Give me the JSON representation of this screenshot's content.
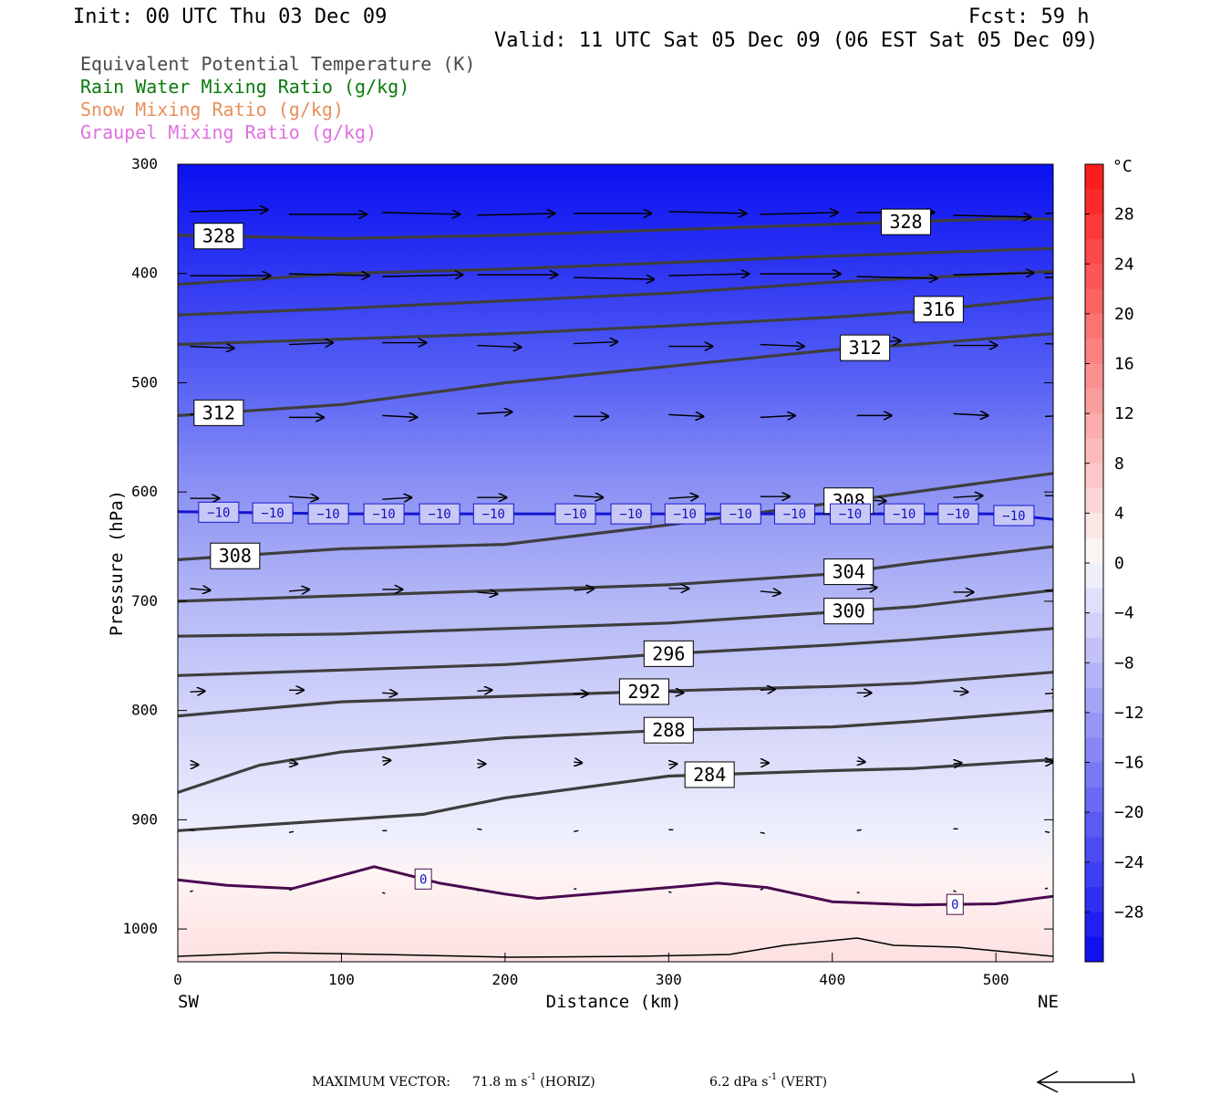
{
  "header": {
    "init": "Init: 00 UTC Thu 03 Dec 09",
    "fcst": "Fcst:   59 h",
    "valid": "Valid: 11 UTC Sat 05 Dec 09 (06 EST Sat 05 Dec 09)"
  },
  "legend": [
    {
      "text": "Equivalent Potential Temperature (K)",
      "color": "#4a4a4a"
    },
    {
      "text": "Rain Water Mixing Ratio (g/kg)",
      "color": "#0a7a0a"
    },
    {
      "text": "Snow Mixing Ratio (g/kg)",
      "color": "#e8905a"
    },
    {
      "text": "Graupel Mixing Ratio (g/kg)",
      "color": "#e070e0"
    }
  ],
  "chart_data": {
    "type": "cross-section",
    "xlabel": "Distance (km)",
    "ylabel": "Pressure (hPa)",
    "xlim": [
      0,
      535
    ],
    "ylim": [
      1030,
      300
    ],
    "x_ticks": [
      "0",
      "100",
      "200",
      "300",
      "400",
      "500"
    ],
    "y_ticks": [
      "300",
      "400",
      "500",
      "600",
      "700",
      "800",
      "900",
      "1000"
    ],
    "left_end_label": "SW",
    "right_end_label": "NE",
    "colorbar": {
      "unit": "°C",
      "range": [
        -32,
        32
      ],
      "tick_labels": [
        "28",
        "24",
        "20",
        "16",
        "12",
        "8",
        "4",
        "0",
        "−4",
        "−8",
        "−12",
        "−16",
        "−20",
        "−24",
        "−28"
      ]
    },
    "theta_e_contours": [
      {
        "label": "328",
        "x": [
          0,
          100,
          200,
          300,
          400,
          500,
          535
        ],
        "p": [
          365,
          368,
          365,
          360,
          355,
          350,
          350
        ]
      },
      {
        "label": "",
        "x": [
          0,
          100,
          200,
          300,
          400,
          535
        ],
        "p": [
          410,
          400,
          396,
          390,
          384,
          377
        ]
      },
      {
        "label": "",
        "x": [
          0,
          100,
          200,
          300,
          400,
          535
        ],
        "p": [
          438,
          432,
          425,
          418,
          408,
          398
        ]
      },
      {
        "label": "316",
        "x": [
          0,
          100,
          200,
          300,
          400,
          450,
          535
        ],
        "p": [
          465,
          460,
          455,
          448,
          440,
          435,
          422
        ]
      },
      {
        "label": "312",
        "x": [
          0,
          100,
          200,
          300,
          400,
          450,
          535
        ],
        "p": [
          530,
          520,
          500,
          485,
          470,
          465,
          455
        ]
      },
      {
        "label": "308",
        "x": [
          0,
          100,
          200,
          300,
          400,
          450,
          535
        ],
        "p": [
          662,
          652,
          648,
          630,
          610,
          600,
          583
        ]
      },
      {
        "label": "304",
        "x": [
          0,
          100,
          200,
          300,
          400,
          450,
          535
        ],
        "p": [
          700,
          695,
          690,
          685,
          675,
          665,
          650
        ]
      },
      {
        "label": "300",
        "x": [
          0,
          100,
          200,
          300,
          400,
          450,
          535
        ],
        "p": [
          732,
          730,
          725,
          720,
          710,
          705,
          690
        ]
      },
      {
        "label": "296",
        "x": [
          0,
          100,
          200,
          300,
          400,
          450,
          535
        ],
        "p": [
          768,
          763,
          758,
          748,
          740,
          735,
          725
        ]
      },
      {
        "label": "292",
        "x": [
          0,
          100,
          200,
          300,
          400,
          450,
          535
        ],
        "p": [
          805,
          792,
          787,
          782,
          778,
          775,
          765
        ]
      },
      {
        "label": "288",
        "x": [
          0,
          50,
          100,
          200,
          300,
          400,
          450,
          535
        ],
        "p": [
          875,
          850,
          838,
          825,
          818,
          815,
          810,
          800
        ]
      },
      {
        "label": "284",
        "x": [
          0,
          100,
          150,
          200,
          300,
          400,
          450,
          535
        ],
        "p": [
          910,
          900,
          895,
          880,
          860,
          855,
          853,
          845
        ]
      }
    ],
    "isotherms": [
      {
        "label": "-10",
        "x": [
          0,
          100,
          200,
          300,
          400,
          500,
          535
        ],
        "p": [
          618,
          620,
          620,
          620,
          620,
          620,
          625
        ]
      },
      {
        "label": "0",
        "x": [
          0,
          30,
          70,
          120,
          160,
          200,
          220,
          300,
          330,
          360,
          400,
          450,
          500,
          535
        ],
        "p": [
          955,
          960,
          963,
          943,
          958,
          968,
          972,
          962,
          958,
          962,
          975,
          978,
          977,
          970
        ]
      }
    ],
    "wind_vectors_max": {
      "horizontal": "71.8",
      "vertical": "6.2"
    }
  },
  "footer": {
    "prefix": "MAXIMUM VECTOR:",
    "horiz": "71.8 m s",
    "horiz_unit_tail": "(HORIZ)",
    "vert": "6.2 dPa s",
    "vert_unit_tail": "(VERT)",
    "exp": "-1"
  }
}
